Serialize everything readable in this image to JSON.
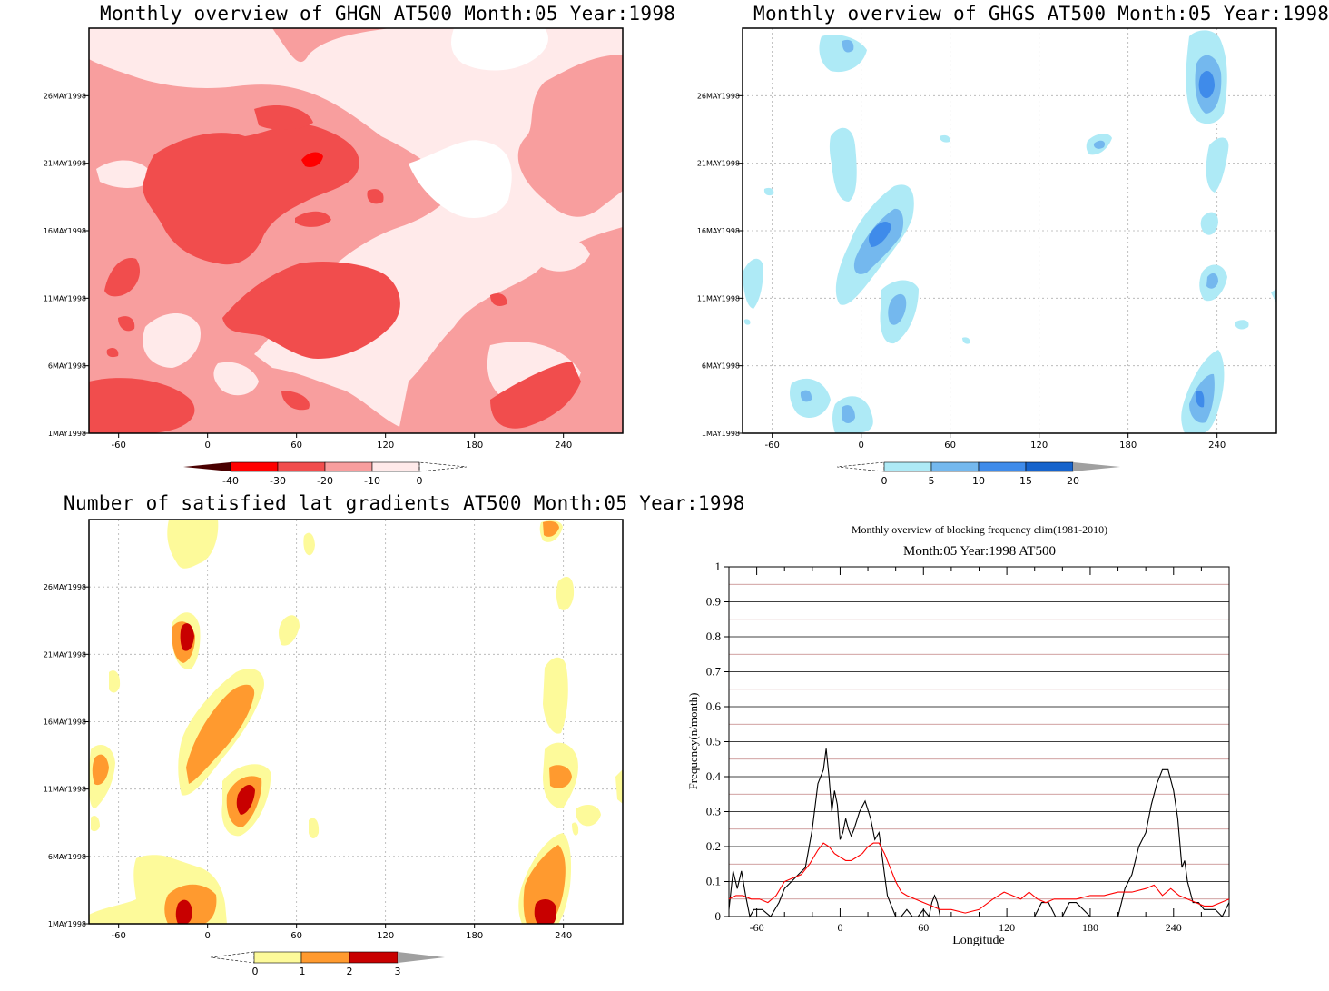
{
  "colors": {
    "red_levels": [
      "#4a0000",
      "#ff0000",
      "#f14d4d",
      "#f89e9e",
      "#ffeaea",
      "#ffffff"
    ],
    "blue_levels": [
      "#ffffff",
      "#aeeaf6",
      "#74b8ee",
      "#3f8bea",
      "#1663cc",
      "#a0a0a0"
    ],
    "sat_levels": [
      "#ffffff",
      "#fdfa9a",
      "#ff9a2f",
      "#c80000",
      "#a0a0a0"
    ],
    "black_line": "#000000",
    "red_line": "#ff0000",
    "gridline_red": "#c08080"
  },
  "chart_data": [
    {
      "id": "ghgn",
      "type": "heatmap",
      "title": "Monthly overview of GHGN AT500 Month:05 Year:1998",
      "x_ticks": [
        "-60",
        "0",
        "60",
        "120",
        "180",
        "240"
      ],
      "x_tick_values": [
        -60,
        0,
        60,
        120,
        180,
        240
      ],
      "xlim": [
        -80,
        280
      ],
      "y_ticks": [
        "1MAY1998",
        "6MAY1998",
        "11MAY1998",
        "16MAY1998",
        "21MAY1998",
        "26MAY1998"
      ],
      "y_tick_values": [
        1,
        6,
        11,
        16,
        21,
        26
      ],
      "ylim": [
        1,
        31
      ],
      "colorbar": {
        "labels": [
          "-40",
          "-30",
          "-20",
          "-10",
          "0"
        ],
        "arrow_left": "filled",
        "arrow_right": "open"
      }
    },
    {
      "id": "ghgs",
      "type": "heatmap",
      "title": "Monthly overview of GHGS AT500 Month:05 Year:1998",
      "x_ticks": [
        "-60",
        "0",
        "60",
        "120",
        "180",
        "240"
      ],
      "x_tick_values": [
        -60,
        0,
        60,
        120,
        180,
        240
      ],
      "xlim": [
        -80,
        280
      ],
      "y_ticks": [
        "1MAY1998",
        "6MAY1998",
        "11MAY1998",
        "16MAY1998",
        "21MAY1998",
        "26MAY1998"
      ],
      "y_tick_values": [
        1,
        6,
        11,
        16,
        21,
        26
      ],
      "ylim": [
        1,
        31
      ],
      "colorbar": {
        "labels": [
          "0",
          "5",
          "10",
          "15",
          "20"
        ],
        "arrow_left": "open",
        "arrow_right": "filled"
      }
    },
    {
      "id": "satisfied",
      "type": "heatmap",
      "title": "Number of satisfied lat gradients AT500 Month:05 Year:1998",
      "x_ticks": [
        "-60",
        "0",
        "60",
        "120",
        "180",
        "240"
      ],
      "x_tick_values": [
        -60,
        0,
        60,
        120,
        180,
        240
      ],
      "xlim": [
        -80,
        280
      ],
      "y_ticks": [
        "1MAY1998",
        "6MAY1998",
        "11MAY1998",
        "16MAY1998",
        "21MAY1998",
        "26MAY1998"
      ],
      "y_tick_values": [
        1,
        6,
        11,
        16,
        21,
        26
      ],
      "ylim": [
        1,
        31
      ],
      "colorbar": {
        "labels": [
          "0",
          "1",
          "2",
          "3"
        ],
        "arrow_left": "open",
        "arrow_right": "filled"
      }
    },
    {
      "id": "blocking",
      "type": "line",
      "title": "Monthly overview of blocking frequency clim(1981-2010)",
      "subtitle": "Month:05 Year:1998  AT500",
      "xlabel": "Longitude",
      "ylabel": "Frequency(n/month)",
      "x_ticks": [
        "-60",
        "0",
        "60",
        "120",
        "180",
        "240"
      ],
      "x_tick_values": [
        -60,
        0,
        60,
        120,
        180,
        240
      ],
      "xlim": [
        -80,
        280
      ],
      "y_ticks": [
        "0",
        "0.1",
        "0.2",
        "0.3",
        "0.4",
        "0.5",
        "0.6",
        "0.7",
        "0.8",
        "0.9",
        "1"
      ],
      "ylim": [
        0,
        1
      ],
      "series": [
        {
          "color": "#000000",
          "x": [
            -80,
            -77,
            -74,
            -71,
            -68,
            -65,
            -62,
            -56,
            -50,
            -44,
            -40,
            -35,
            -30,
            -25,
            -20,
            -16,
            -12,
            -10,
            -8,
            -6,
            -4,
            -2,
            0,
            2,
            4,
            6,
            8,
            10,
            14,
            18,
            22,
            25,
            28,
            30,
            32,
            34,
            36,
            40,
            44,
            48,
            52,
            56,
            60,
            64,
            66,
            68,
            70,
            72,
            76,
            80,
            84,
            88,
            92,
            96,
            100,
            110,
            120,
            130,
            140,
            145,
            150,
            155,
            160,
            165,
            170,
            180,
            190,
            200,
            205,
            210,
            215,
            220,
            224,
            228,
            232,
            236,
            240,
            243,
            246,
            248,
            250,
            254,
            258,
            262,
            266,
            270,
            275,
            280
          ],
          "y": [
            0.02,
            0.13,
            0.08,
            0.13,
            0.06,
            0.0,
            0.02,
            0.02,
            0.0,
            0.04,
            0.08,
            0.1,
            0.12,
            0.14,
            0.25,
            0.38,
            0.42,
            0.48,
            0.4,
            0.3,
            0.36,
            0.32,
            0.22,
            0.24,
            0.28,
            0.25,
            0.23,
            0.25,
            0.3,
            0.33,
            0.28,
            0.22,
            0.24,
            0.18,
            0.12,
            0.06,
            0.04,
            0.0,
            0.0,
            0.02,
            0.0,
            0.0,
            0.02,
            0.0,
            0.04,
            0.06,
            0.04,
            0.0,
            0.0,
            0.0,
            0.0,
            0.0,
            0.0,
            0.0,
            0.0,
            0.0,
            0.0,
            0.0,
            0.0,
            0.04,
            0.04,
            0.0,
            0.0,
            0.04,
            0.04,
            0.0,
            0.0,
            0.0,
            0.08,
            0.12,
            0.2,
            0.24,
            0.32,
            0.38,
            0.42,
            0.42,
            0.36,
            0.28,
            0.14,
            0.16,
            0.1,
            0.04,
            0.04,
            0.02,
            0.02,
            0.02,
            0.0,
            0.04
          ]
        },
        {
          "color": "#ff0000",
          "x": [
            -80,
            -75,
            -70,
            -64,
            -58,
            -52,
            -46,
            -40,
            -34,
            -28,
            -22,
            -16,
            -12,
            -8,
            -4,
            0,
            4,
            8,
            12,
            16,
            20,
            24,
            28,
            32,
            36,
            40,
            44,
            48,
            54,
            60,
            66,
            72,
            80,
            90,
            100,
            110,
            118,
            124,
            130,
            136,
            142,
            148,
            154,
            160,
            170,
            180,
            190,
            200,
            210,
            220,
            226,
            232,
            238,
            244,
            250,
            256,
            262,
            268,
            274,
            280
          ],
          "y": [
            0.05,
            0.06,
            0.06,
            0.05,
            0.05,
            0.04,
            0.06,
            0.1,
            0.11,
            0.12,
            0.15,
            0.19,
            0.21,
            0.2,
            0.18,
            0.17,
            0.16,
            0.16,
            0.17,
            0.18,
            0.2,
            0.21,
            0.21,
            0.18,
            0.14,
            0.1,
            0.07,
            0.06,
            0.05,
            0.04,
            0.03,
            0.02,
            0.02,
            0.01,
            0.02,
            0.05,
            0.07,
            0.06,
            0.05,
            0.07,
            0.05,
            0.04,
            0.05,
            0.05,
            0.05,
            0.06,
            0.06,
            0.07,
            0.07,
            0.08,
            0.09,
            0.06,
            0.08,
            0.06,
            0.05,
            0.04,
            0.03,
            0.03,
            0.04,
            0.05
          ]
        }
      ]
    }
  ]
}
